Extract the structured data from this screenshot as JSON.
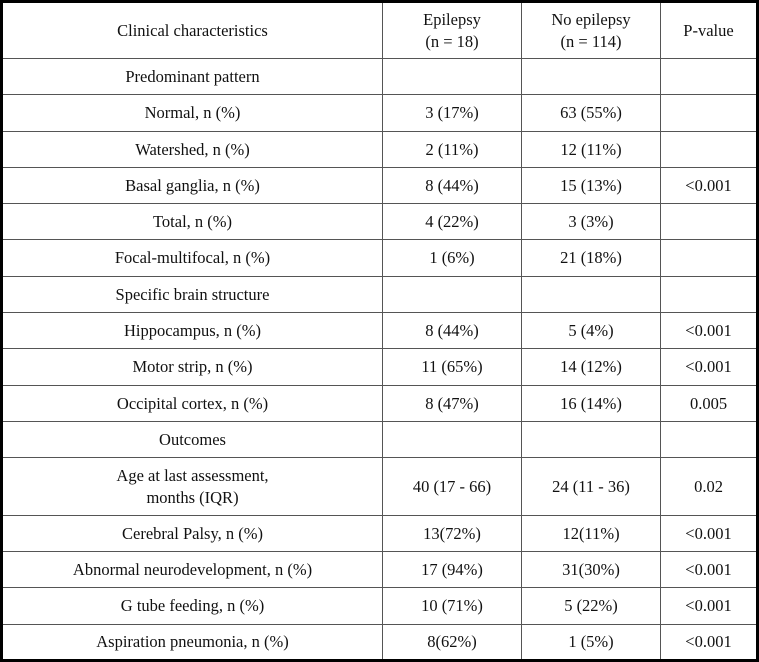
{
  "colors": {
    "outer_border": "#000000",
    "inner_border": "#555555",
    "text": "#111111",
    "background": "#ffffff"
  },
  "table": {
    "columns": [
      "Clinical characteristics",
      "Epilepsy\n(n = 18)",
      "No epilepsy\n(n = 114)",
      "P-value"
    ],
    "rows": [
      {
        "type": "section",
        "label": "Predominant pattern",
        "epilepsy": "",
        "no_epilepsy": "",
        "p_value": ""
      },
      {
        "type": "data",
        "label": "Normal, n (%)",
        "epilepsy": "3 (17%)",
        "no_epilepsy": "63 (55%)",
        "p_value": ""
      },
      {
        "type": "data",
        "label": "Watershed, n (%)",
        "epilepsy": "2 (11%)",
        "no_epilepsy": "12 (11%)",
        "p_value": ""
      },
      {
        "type": "data",
        "label": "Basal ganglia, n (%)",
        "epilepsy": "8 (44%)",
        "no_epilepsy": "15 (13%)",
        "p_value": "<0.001"
      },
      {
        "type": "data",
        "label": "Total, n (%)",
        "epilepsy": "4 (22%)",
        "no_epilepsy": "3 (3%)",
        "p_value": ""
      },
      {
        "type": "data",
        "label": "Focal-multifocal, n (%)",
        "epilepsy": "1 (6%)",
        "no_epilepsy": "21 (18%)",
        "p_value": ""
      },
      {
        "type": "section",
        "label": "Specific brain structure",
        "epilepsy": "",
        "no_epilepsy": "",
        "p_value": ""
      },
      {
        "type": "data",
        "label": "Hippocampus, n (%)",
        "epilepsy": "8 (44%)",
        "no_epilepsy": "5 (4%)",
        "p_value": "<0.001"
      },
      {
        "type": "data",
        "label": "Motor strip, n (%)",
        "epilepsy": "11 (65%)",
        "no_epilepsy": "14 (12%)",
        "p_value": "<0.001"
      },
      {
        "type": "data",
        "label": "Occipital cortex, n (%)",
        "epilepsy": "8 (47%)",
        "no_epilepsy": "16 (14%)",
        "p_value": "0.005"
      },
      {
        "type": "section",
        "label": "Outcomes",
        "epilepsy": "",
        "no_epilepsy": "",
        "p_value": ""
      },
      {
        "type": "data",
        "label": "Age at last assessment,\nmonths (IQR)",
        "epilepsy": "40 (17 - 66)",
        "no_epilepsy": "24 (11 - 36)",
        "p_value": "0.02",
        "tall": true
      },
      {
        "type": "data",
        "label": "Cerebral Palsy, n (%)",
        "epilepsy": "13(72%)",
        "no_epilepsy": "12(11%)",
        "p_value": "<0.001"
      },
      {
        "type": "data",
        "label": "Abnormal neurodevelopment, n (%)",
        "epilepsy": "17 (94%)",
        "no_epilepsy": "31(30%)",
        "p_value": "<0.001"
      },
      {
        "type": "data",
        "label": "G tube feeding, n (%)",
        "epilepsy": "10 (71%)",
        "no_epilepsy": "5 (22%)",
        "p_value": "<0.001"
      },
      {
        "type": "data",
        "label": "Aspiration pneumonia, n (%)",
        "epilepsy": "8(62%)",
        "no_epilepsy": "1 (5%)",
        "p_value": "<0.001"
      }
    ]
  }
}
